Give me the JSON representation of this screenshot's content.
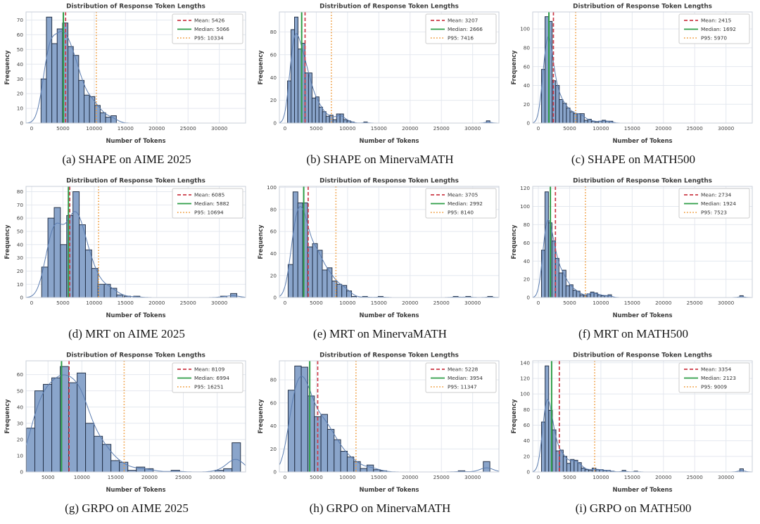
{
  "colors": {
    "bar_fill": "#8aa5cb",
    "bar_edge": "#243249",
    "kde": "#5b7db1",
    "mean": "#cb3b48",
    "median": "#2e9e47",
    "p95": "#f09d3f",
    "grid": "#e4e8ef",
    "spine": "#c9cfd8",
    "title": "#3a3a3a",
    "tick": "#444444",
    "legend_border": "#cccccc"
  },
  "chart_data": [
    {
      "type": "histogram",
      "caption": "(a) SHAPE on AIME 2025",
      "title": "Distribution of Response Token Lengths",
      "xlabel": "Number of Tokens",
      "ylabel": "Frequency",
      "stats": {
        "mean": 5426,
        "median": 5066,
        "p95": 10334
      },
      "legend": {
        "mean": "Mean: 5426",
        "median": "Median: 5066",
        "p95": "P95: 10334"
      },
      "xlim": [
        -900,
        34200
      ],
      "ylim": 75.5,
      "xticks": [
        0,
        5000,
        10000,
        15000,
        20000,
        25000,
        30000
      ],
      "yticks": [
        0,
        10,
        20,
        30,
        40,
        50,
        60,
        70
      ],
      "bin_start": 1500,
      "bin_width": 860,
      "counts": [
        30,
        72,
        54,
        64,
        68,
        52,
        46,
        29,
        19,
        18,
        12,
        7,
        4,
        5
      ],
      "extras": []
    },
    {
      "type": "histogram",
      "caption": "(b) SHAPE on MinervaMATH",
      "title": "Distribution of Response Token Lengths",
      "xlabel": "Number of Tokens",
      "ylabel": "Frequency",
      "stats": {
        "mean": 3207,
        "median": 2666,
        "p95": 7416
      },
      "legend": {
        "mean": "Mean: 3207",
        "median": "Median: 2666",
        "p95": "P95: 7416"
      },
      "xlim": [
        -900,
        34200
      ],
      "ylim": 97.5,
      "xticks": [
        0,
        5000,
        10000,
        15000,
        20000,
        25000,
        30000
      ],
      "yticks": [
        0,
        20,
        40,
        60,
        80
      ],
      "bin_start": 400,
      "bin_width": 560,
      "counts": [
        37,
        82,
        93,
        65,
        70,
        44,
        44,
        22,
        23,
        14,
        10,
        6,
        7,
        3,
        8,
        8,
        3,
        2,
        1
      ],
      "extras": [
        [
          12600,
          1
        ],
        [
          32200,
          2
        ]
      ]
    },
    {
      "type": "histogram",
      "caption": "(c) SHAPE on MATH500",
      "title": "Distribution of Response Token Lengths",
      "xlabel": "Number of Tokens",
      "ylabel": "Frequency",
      "stats": {
        "mean": 2415,
        "median": 1692,
        "p95": 5970
      },
      "legend": {
        "mean": "Mean: 2415",
        "median": "Median: 1692",
        "p95": "P95: 5970"
      },
      "xlim": [
        -900,
        34200
      ],
      "ylim": 118,
      "xticks": [
        0,
        5000,
        10000,
        15000,
        20000,
        25000,
        30000
      ],
      "yticks": [
        0,
        20,
        40,
        60,
        80,
        100
      ],
      "bin_start": 500,
      "bin_width": 570,
      "counts": [
        57,
        113,
        108,
        45,
        40,
        25,
        21,
        16,
        12,
        10,
        10,
        10,
        3,
        4,
        2,
        1,
        2,
        3,
        2,
        2
      ],
      "extras": []
    },
    {
      "type": "histogram",
      "caption": "(d) MRT on AIME 2025",
      "title": "Distribution of Response Token Lengths",
      "xlabel": "Number of Tokens",
      "ylabel": "Frequency",
      "stats": {
        "mean": 6085,
        "median": 5882,
        "p95": 10694
      },
      "legend": {
        "mean": "Mean: 6085",
        "median": "Median: 5882",
        "p95": "P95: 10694"
      },
      "xlim": [
        -900,
        34200
      ],
      "ylim": 84,
      "xticks": [
        0,
        5000,
        10000,
        15000,
        20000,
        25000,
        30000
      ],
      "yticks": [
        0,
        10,
        20,
        30,
        40,
        50,
        60,
        70,
        80
      ],
      "bin_start": 1600,
      "bin_width": 1000,
      "counts": [
        23,
        60,
        68,
        40,
        62,
        80,
        55,
        36,
        22,
        10,
        10,
        7,
        2
      ],
      "extras": [
        [
          14800,
          1
        ],
        [
          16300,
          1
        ],
        [
          30200,
          1
        ],
        [
          31800,
          3
        ]
      ]
    },
    {
      "type": "histogram",
      "caption": "(e) MRT on MinervaMATH",
      "title": "Distribution of Response Token Lengths",
      "xlabel": "Number of Tokens",
      "ylabel": "Frequency",
      "stats": {
        "mean": 3705,
        "median": 2992,
        "p95": 8140
      },
      "legend": {
        "mean": "Mean: 3705",
        "median": "Median: 2992",
        "p95": "P95: 8140"
      },
      "xlim": [
        -900,
        34200
      ],
      "ylim": 101,
      "xticks": [
        0,
        5000,
        10000,
        15000,
        20000,
        25000,
        30000
      ],
      "yticks": [
        0,
        20,
        40,
        60,
        80,
        100
      ],
      "bin_start": 500,
      "bin_width": 780,
      "counts": [
        30,
        96,
        86,
        86,
        46,
        49,
        43,
        25,
        27,
        15,
        12,
        11,
        6,
        1
      ],
      "extras": [
        [
          12400,
          1
        ],
        [
          14900,
          1
        ],
        [
          26900,
          1
        ],
        [
          28900,
          1
        ],
        [
          32400,
          1
        ]
      ]
    },
    {
      "type": "histogram",
      "caption": "(f) MRT on MATH500",
      "title": "Distribution of Response Token Lengths",
      "xlabel": "Number of Tokens",
      "ylabel": "Frequency",
      "stats": {
        "mean": 2734,
        "median": 1924,
        "p95": 7523
      },
      "legend": {
        "mean": "Mean: 2734",
        "median": "Median: 1924",
        "p95": "P95: 7523"
      },
      "xlim": [
        -900,
        34200
      ],
      "ylim": 122,
      "xticks": [
        0,
        5000,
        10000,
        15000,
        20000,
        25000,
        30000
      ],
      "yticks": [
        0,
        20,
        40,
        60,
        80,
        100,
        120
      ],
      "bin_start": 500,
      "bin_width": 560,
      "counts": [
        52,
        116,
        82,
        62,
        43,
        27,
        30,
        13,
        14,
        8,
        7,
        3,
        2,
        4,
        6,
        5,
        3,
        2,
        2,
        3
      ],
      "extras": [
        [
          32200,
          2
        ]
      ]
    },
    {
      "type": "histogram",
      "caption": "(g) GRPO on AIME 2025",
      "title": "Distribution of Response Token Lengths",
      "xlabel": "Number of Tokens",
      "ylabel": "Frequency",
      "stats": {
        "mean": 8109,
        "median": 6994,
        "p95": 16251
      },
      "legend": {
        "mean": "Mean: 8109",
        "median": "Median: 6994",
        "p95": "P95: 16251"
      },
      "xlim": [
        1750,
        34200
      ],
      "ylim": 68.5,
      "xticks": [
        5000,
        10000,
        15000,
        20000,
        25000,
        30000
      ],
      "yticks": [
        0,
        10,
        20,
        30,
        40,
        50,
        60
      ],
      "bin_start": 1800,
      "bin_width": 1250,
      "counts": [
        27,
        50,
        54,
        58,
        65,
        55,
        61,
        30,
        22,
        17,
        7,
        6,
        1,
        3,
        2
      ],
      "extras": [
        [
          23200,
          1
        ],
        [
          29700,
          1
        ],
        [
          30950,
          2
        ],
        [
          32200,
          18
        ]
      ]
    },
    {
      "type": "histogram",
      "caption": "(h) GRPO on MinervaMATH",
      "title": "Distribution of Response Token Lengths",
      "xlabel": "Number of Tokens",
      "ylabel": "Frequency",
      "stats": {
        "mean": 5228,
        "median": 3954,
        "p95": 11347
      },
      "legend": {
        "mean": "Mean: 5228",
        "median": "Median: 3954",
        "p95": "P95: 11347"
      },
      "xlim": [
        -900,
        34200
      ],
      "ylim": 96.5,
      "xticks": [
        0,
        5000,
        10000,
        15000,
        20000,
        25000,
        30000
      ],
      "yticks": [
        0,
        20,
        40,
        60,
        80
      ],
      "bin_start": 500,
      "bin_width": 1050,
      "counts": [
        71,
        92,
        91,
        66,
        48,
        50,
        37,
        28,
        18,
        13,
        9,
        3,
        6,
        2,
        1
      ],
      "extras": [
        [
          27700,
          1
        ],
        [
          31700,
          9
        ]
      ]
    },
    {
      "type": "histogram",
      "caption": "(i) GRPO on MATH500",
      "title": "Distribution of Response Token Lengths",
      "xlabel": "Number of Tokens",
      "ylabel": "Frequency",
      "stats": {
        "mean": 3354,
        "median": 2123,
        "p95": 9009
      },
      "legend": {
        "mean": "Mean: 3354",
        "median": "Median: 2123",
        "p95": "P95: 9009"
      },
      "xlim": [
        -900,
        34200
      ],
      "ylim": 142.5,
      "xticks": [
        0,
        5000,
        10000,
        15000,
        20000,
        25000,
        30000
      ],
      "yticks": [
        0,
        20,
        40,
        60,
        80,
        100,
        120,
        140
      ],
      "bin_start": 500,
      "bin_width": 580,
      "counts": [
        64,
        136,
        79,
        54,
        27,
        28,
        20,
        11,
        16,
        15,
        12,
        5,
        3,
        2,
        5,
        3,
        3,
        2,
        2,
        1
      ],
      "extras": [
        [
          13400,
          2
        ],
        [
          15300,
          1
        ],
        [
          32200,
          4
        ]
      ]
    }
  ]
}
